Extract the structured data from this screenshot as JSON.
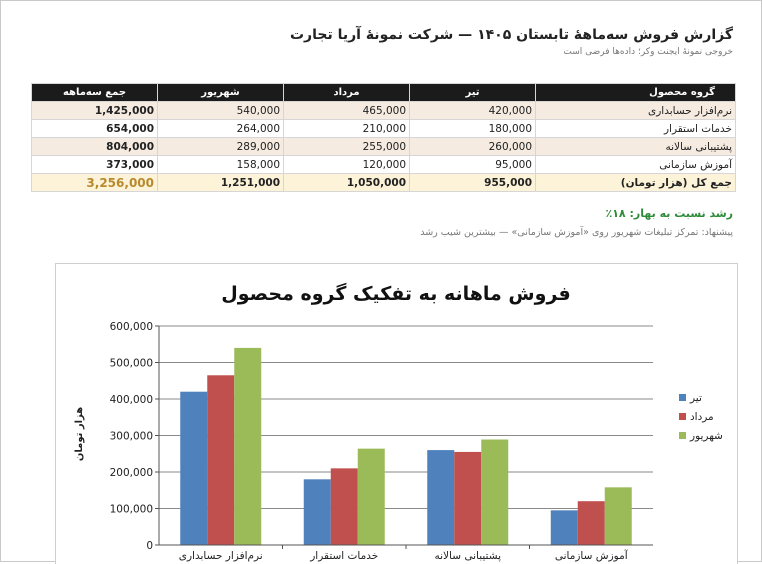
{
  "report": {
    "title": "گزارش فروش سه‌ماههٔ تابستان ۱۴۰۵ — شرکت نمونهٔ آریا تجارت",
    "subtitle": "خروجی نمونهٔ ایجنت وکر؛ داده‌ها فرضی است"
  },
  "table": {
    "headers": {
      "group": "گروه محصول",
      "m1": "تیر",
      "m2": "مرداد",
      "m3": "شهریور",
      "total": "جمع سه‌ماهه"
    },
    "rows": [
      {
        "name": "نرم‌افزار حسابداری",
        "m1": "420,000",
        "m2": "465,000",
        "m3": "540,000",
        "total": "1,425,000"
      },
      {
        "name": "خدمات استقرار",
        "m1": "180,000",
        "m2": "210,000",
        "m3": "264,000",
        "total": "654,000"
      },
      {
        "name": "پشتیبانی سالانه",
        "m1": "260,000",
        "m2": "255,000",
        "m3": "289,000",
        "total": "804,000"
      },
      {
        "name": "آموزش سازمانی",
        "m1": "95,000",
        "m2": "120,000",
        "m3": "158,000",
        "total": "373,000"
      }
    ],
    "grand": {
      "name": "جمع کل (هزار تومان)",
      "m1": "955,000",
      "m2": "1,050,000",
      "m3": "1,251,000",
      "total": "3,256,000"
    }
  },
  "notes": {
    "growth": "رشد نسبت به بهار: ۱۸٪",
    "suggestion": "پیشنهاد: تمرکز تبلیغات شهریور روی «آموزش سازمانی» — بیشترین شیب رشد"
  },
  "chart_data": {
    "type": "bar",
    "title": "فروش ماهانه به تفکیک گروه محصول",
    "ylabel": "هزار تومان",
    "xlabel": "",
    "categories": [
      "نرم‌افزار حسابداری",
      "خدمات استقرار",
      "پشتیبانی سالانه",
      "آموزش سازمانی"
    ],
    "series": [
      {
        "name": "تیر",
        "values": [
          420000,
          180000,
          260000,
          95000
        ],
        "color": "#4f81bd"
      },
      {
        "name": "مرداد",
        "values": [
          465000,
          210000,
          255000,
          120000
        ],
        "color": "#c0504d"
      },
      {
        "name": "شهریور",
        "values": [
          540000,
          264000,
          289000,
          158000
        ],
        "color": "#9bbb59"
      }
    ],
    "ylim": [
      0,
      600000
    ],
    "yticks": [
      0,
      100000,
      200000,
      300000,
      400000,
      500000,
      600000
    ],
    "ytick_labels": [
      "0",
      "100,000",
      "200,000",
      "300,000",
      "400,000",
      "500,000",
      "600,000"
    ],
    "grid": true,
    "legend_position": "right"
  }
}
